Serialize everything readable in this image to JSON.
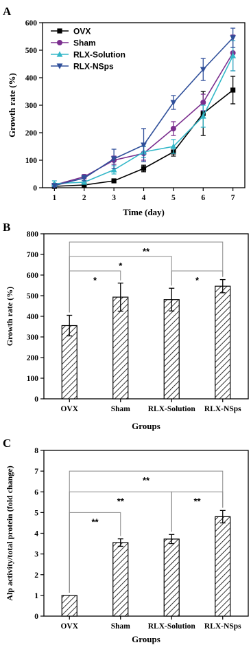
{
  "chart_data": [
    {
      "panel": "A",
      "type": "line",
      "x": [
        1,
        2,
        3,
        4,
        5,
        6,
        7
      ],
      "xlabel": "Time (day)",
      "ylabel": "Growth rate (%)",
      "xlim": [
        0.6,
        7.4
      ],
      "ylim": [
        0,
        600
      ],
      "xticks": [
        "1",
        "2",
        "3",
        "4",
        "5",
        "6",
        "7"
      ],
      "yticks": [
        "0",
        "100",
        "200",
        "300",
        "400",
        "500",
        "600"
      ],
      "legend_position": "top-left",
      "series": [
        {
          "name": "OVX",
          "color": "#000000",
          "marker": "square",
          "values": [
            5,
            10,
            25,
            70,
            130,
            270,
            355
          ],
          "errors": [
            3,
            4,
            5,
            12,
            15,
            80,
            50
          ]
        },
        {
          "name": "Sham",
          "color": "#7b2e8e",
          "marker": "circle",
          "values": [
            10,
            40,
            100,
            125,
            215,
            310,
            490
          ],
          "errors": [
            5,
            8,
            15,
            25,
            25,
            30,
            65
          ]
        },
        {
          "name": "RLX-Solution",
          "color": "#32b7c8",
          "marker": "triangle-up",
          "values": [
            15,
            20,
            65,
            130,
            150,
            260,
            480
          ],
          "errors": [
            10,
            6,
            15,
            20,
            25,
            40,
            55
          ]
        },
        {
          "name": "RLX-NSps",
          "color": "#2f4f9a",
          "marker": "triangle-down",
          "values": [
            8,
            35,
            105,
            155,
            310,
            430,
            545
          ],
          "errors": [
            5,
            10,
            35,
            60,
            25,
            40,
            35
          ]
        }
      ]
    },
    {
      "panel": "B",
      "type": "bar",
      "categories": [
        "OVX",
        "Sham",
        "RLX-Solution",
        "RLX-NSps"
      ],
      "values": [
        355,
        493,
        481,
        546
      ],
      "errors": [
        50,
        68,
        55,
        32
      ],
      "xlabel": "Groups",
      "ylabel": "Growth rate (%)",
      "ylim": [
        0,
        800
      ],
      "yticks": [
        "0",
        "100",
        "200",
        "300",
        "400",
        "500",
        "600",
        "700",
        "800"
      ],
      "bar_fill": "hatched",
      "significance": [
        {
          "from": 0,
          "to": 1,
          "label": "*",
          "level": 620
        },
        {
          "from": 0,
          "to": 2,
          "label": "*",
          "level": 690
        },
        {
          "from": 2,
          "to": 3,
          "label": "*",
          "level": 620
        },
        {
          "from": 0,
          "to": 3,
          "label": "**",
          "level": 760
        }
      ]
    },
    {
      "panel": "C",
      "type": "bar",
      "categories": [
        "OVX",
        "Sham",
        "RLX-Solution",
        "RLX-NSps"
      ],
      "values": [
        1.0,
        3.55,
        3.72,
        4.8
      ],
      "errors": [
        0,
        0.18,
        0.22,
        0.3
      ],
      "xlabel": "Groups",
      "ylabel": "Alp activity/total protein (fold change)",
      "ylim": [
        0,
        8
      ],
      "yticks": [
        "0",
        "1",
        "2",
        "3",
        "4",
        "5",
        "6",
        "7",
        "8"
      ],
      "bar_fill": "hatched",
      "significance": [
        {
          "from": 0,
          "to": 1,
          "label": "**",
          "level": 5.0
        },
        {
          "from": 0,
          "to": 2,
          "label": "**",
          "level": 6.0
        },
        {
          "from": 2,
          "to": 3,
          "label": "**",
          "level": 6.0
        },
        {
          "from": 0,
          "to": 3,
          "label": "**",
          "level": 7.0
        }
      ]
    }
  ]
}
